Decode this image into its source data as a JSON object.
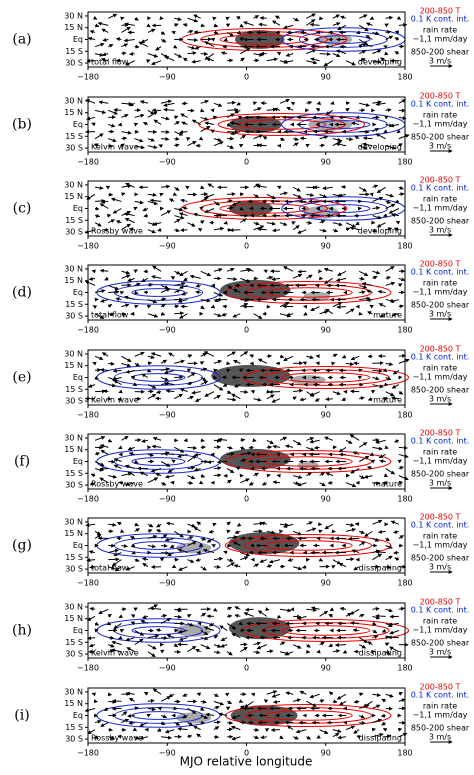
{
  "chart_data": [
    {
      "type": "map",
      "panel_label": "(a)",
      "flow": "total flow",
      "phase": "developing",
      "xlim": [
        -180,
        180
      ],
      "xticks": [
        {
          "value": -180,
          "label": "−180"
        },
        {
          "value": -90,
          "label": "−90"
        },
        0,
        90,
        180
      ],
      "ylim": [
        -35,
        35
      ],
      "yticks": [
        {
          "value": 30,
          "label": "30 N"
        },
        {
          "value": 15,
          "label": "15 N"
        },
        {
          "value": 0,
          "label": "Eq"
        },
        {
          "value": -15,
          "label": "15 S"
        },
        {
          "value": -30,
          "label": "30 S"
        }
      ],
      "legend": [
        "200-850 T",
        "0.1 K cont. int.",
        "rain rate",
        "−1,1 mm/day",
        "850-200 shear",
        "3 m/s"
      ]
    },
    {
      "type": "map",
      "panel_label": "(b)",
      "flow": "Kelvin wave",
      "phase": "developing",
      "xlim": [
        -180,
        180
      ],
      "xticks": [
        {
          "value": -180,
          "label": "−180"
        },
        {
          "value": -90,
          "label": "−90"
        },
        0,
        90,
        180
      ],
      "ylim": [
        -35,
        35
      ],
      "yticks": [
        {
          "value": 30,
          "label": "30 N"
        },
        {
          "value": 15,
          "label": "15 N"
        },
        {
          "value": 0,
          "label": "Eq"
        },
        {
          "value": -15,
          "label": "15 S"
        },
        {
          "value": -30,
          "label": "30 S"
        }
      ],
      "legend": [
        "200-850 T",
        "0.1 K cont. int.",
        "rain rate",
        "−1,1 mm/day",
        "850-200 shear",
        "3 m/s"
      ]
    },
    {
      "type": "map",
      "panel_label": "(c)",
      "flow": "Rossby wave",
      "phase": "developing",
      "xlim": [
        -180,
        180
      ],
      "xticks": [
        {
          "value": -180,
          "label": "−180"
        },
        {
          "value": -90,
          "label": "−90"
        },
        0,
        90,
        180
      ],
      "ylim": [
        -35,
        35
      ],
      "yticks": [
        {
          "value": 30,
          "label": "30 N"
        },
        {
          "value": 15,
          "label": "15 N"
        },
        {
          "value": 0,
          "label": "Eq"
        },
        {
          "value": -15,
          "label": "15 S"
        },
        {
          "value": -30,
          "label": "30 S"
        }
      ],
      "legend": [
        "200-850 T",
        "0.1 K cont. int.",
        "rain rate",
        "−1,1 mm/day",
        "850-200 shear",
        "3 m/s"
      ]
    },
    {
      "type": "map",
      "panel_label": "(d)",
      "flow": "total flow",
      "phase": "mature",
      "xlim": [
        -180,
        180
      ],
      "xticks": [
        {
          "value": -180,
          "label": "−180"
        },
        {
          "value": -90,
          "label": "−90"
        },
        0,
        90,
        180
      ],
      "ylim": [
        -35,
        35
      ],
      "yticks": [
        {
          "value": 30,
          "label": "30 N"
        },
        {
          "value": 15,
          "label": "15 N"
        },
        {
          "value": 0,
          "label": "Eq"
        },
        {
          "value": -15,
          "label": "15 S"
        },
        {
          "value": -30,
          "label": "30 S"
        }
      ],
      "legend": [
        "200-850 T",
        "0.1 K cont. int.",
        "rain rate",
        "−1,1 mm/day",
        "850-200 shear",
        "3 m/s"
      ]
    },
    {
      "type": "map",
      "panel_label": "(e)",
      "flow": "Kelvin wave",
      "phase": "mature",
      "xlim": [
        -180,
        180
      ],
      "xticks": [
        {
          "value": -180,
          "label": "−180"
        },
        {
          "value": -90,
          "label": "−90"
        },
        0,
        90,
        180
      ],
      "ylim": [
        -35,
        35
      ],
      "yticks": [
        {
          "value": 30,
          "label": "30 N"
        },
        {
          "value": 15,
          "label": "15 N"
        },
        {
          "value": 0,
          "label": "Eq"
        },
        {
          "value": -15,
          "label": "15 S"
        },
        {
          "value": -30,
          "label": "30 S"
        }
      ],
      "legend": [
        "200-850 T",
        "0.1 K cont. int.",
        "rain rate",
        "−1,1 mm/day",
        "850-200 shear",
        "3 m/s"
      ]
    },
    {
      "type": "map",
      "panel_label": "(f)",
      "flow": "Rossby wave",
      "phase": "mature",
      "xlim": [
        -180,
        180
      ],
      "xticks": [
        {
          "value": -180,
          "label": "−180"
        },
        {
          "value": -90,
          "label": "−90"
        },
        0,
        90,
        180
      ],
      "ylim": [
        -35,
        35
      ],
      "yticks": [
        {
          "value": 30,
          "label": "30 N"
        },
        {
          "value": 15,
          "label": "15 N"
        },
        {
          "value": 0,
          "label": "Eq"
        },
        {
          "value": -15,
          "label": "15 S"
        },
        {
          "value": -30,
          "label": "30 S"
        }
      ],
      "legend": [
        "200-850 T",
        "0.1 K cont. int.",
        "rain rate",
        "−1,1 mm/day",
        "850-200 shear",
        "3 m/s"
      ]
    },
    {
      "type": "map",
      "panel_label": "(g)",
      "flow": "total flow",
      "phase": "dissipating",
      "xlim": [
        -180,
        180
      ],
      "xticks": [
        {
          "value": -180,
          "label": "−180"
        },
        {
          "value": -90,
          "label": "−90"
        },
        0,
        90,
        180
      ],
      "ylim": [
        -35,
        35
      ],
      "yticks": [
        {
          "value": 30,
          "label": "30 N"
        },
        {
          "value": 15,
          "label": "15 N"
        },
        {
          "value": 0,
          "label": "Eq"
        },
        {
          "value": -15,
          "label": "15 S"
        },
        {
          "value": -30,
          "label": "30 S"
        }
      ],
      "legend": [
        "200-850 T",
        "0.1 K cont. int.",
        "rain rate",
        "−1,1 mm/day",
        "850-200 shear",
        "3 m/s"
      ]
    },
    {
      "type": "map",
      "panel_label": "(h)",
      "flow": "Kelvin wave",
      "phase": "dissipating",
      "xlim": [
        -180,
        180
      ],
      "xticks": [
        {
          "value": -180,
          "label": "−180"
        },
        {
          "value": -90,
          "label": "−90"
        },
        0,
        90,
        180
      ],
      "ylim": [
        -35,
        35
      ],
      "yticks": [
        {
          "value": 30,
          "label": "30 N"
        },
        {
          "value": 15,
          "label": "15 N"
        },
        {
          "value": 0,
          "label": "Eq"
        },
        {
          "value": -15,
          "label": "15 S"
        },
        {
          "value": -30,
          "label": "30 S"
        }
      ],
      "legend": [
        "200-850 T",
        "0.1 K cont. int.",
        "rain rate",
        "−1,1 mm/day",
        "850-200 shear",
        "3 m/s"
      ]
    },
    {
      "type": "map",
      "panel_label": "(i)",
      "flow": "Rossby wave",
      "phase": "dissipating",
      "xlim": [
        -180,
        180
      ],
      "xticks": [
        {
          "value": -180,
          "label": "−180"
        },
        {
          "value": -90,
          "label": "−90"
        },
        0,
        90,
        180
      ],
      "ylim": [
        -35,
        35
      ],
      "yticks": [
        {
          "value": 30,
          "label": "30 N"
        },
        {
          "value": 15,
          "label": "15 N"
        },
        {
          "value": 0,
          "label": "Eq"
        },
        {
          "value": -15,
          "label": "15 S"
        },
        {
          "value": -30,
          "label": "30 S"
        }
      ],
      "legend": [
        "200-850 T",
        "0.1 K cont. int.",
        "rain rate",
        "−1,1 mm/day",
        "850-200 shear",
        "3 m/s"
      ]
    }
  ],
  "xlabel": "MJO relative longitude"
}
